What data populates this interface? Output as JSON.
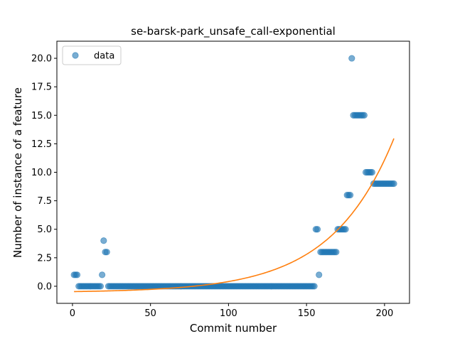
{
  "chart_data": {
    "type": "scatter",
    "title": "se-barsk-park_unsafe_call-exponential",
    "xlabel": "Commit number",
    "ylabel": "Number of instance of a feature",
    "xlim": [
      -10,
      216
    ],
    "ylim": [
      -1.5,
      21.5
    ],
    "xticks": [
      0,
      50,
      100,
      150,
      200
    ],
    "yticks": [
      0.0,
      2.5,
      5.0,
      7.5,
      10.0,
      12.5,
      15.0,
      17.5,
      20.0
    ],
    "ytick_labels": [
      "0.0",
      "2.5",
      "5.0",
      "7.5",
      "10.0",
      "12.5",
      "15.0",
      "17.5",
      "20.0"
    ],
    "legend": {
      "position": "upper-left",
      "entries": [
        "data"
      ]
    },
    "colors": {
      "data": "#1f77b4",
      "fit": "#ff7f0e"
    },
    "series": [
      {
        "name": "data",
        "kind": "scatter",
        "runs": [
          {
            "x_start": 1,
            "x_end": 3,
            "y": 1
          },
          {
            "x_start": 4,
            "x_end": 18,
            "y": 0
          },
          {
            "x_start": 19,
            "x_end": 19,
            "y": 1
          },
          {
            "x_start": 20,
            "x_end": 20,
            "y": 4
          },
          {
            "x_start": 21,
            "x_end": 22,
            "y": 3
          },
          {
            "x_start": 23,
            "x_end": 155,
            "y": 0
          },
          {
            "x_start": 156,
            "x_end": 157,
            "y": 5
          },
          {
            "x_start": 158,
            "x_end": 158,
            "y": 1
          },
          {
            "x_start": 159,
            "x_end": 169,
            "y": 3
          },
          {
            "x_start": 170,
            "x_end": 175,
            "y": 5
          },
          {
            "x_start": 176,
            "x_end": 178,
            "y": 8
          },
          {
            "x_start": 179,
            "x_end": 179,
            "y": 20
          },
          {
            "x_start": 180,
            "x_end": 187,
            "y": 15
          },
          {
            "x_start": 188,
            "x_end": 192,
            "y": 10
          },
          {
            "x_start": 193,
            "x_end": 206,
            "y": 9
          }
        ]
      },
      {
        "name": "",
        "kind": "line",
        "model": "exponential",
        "a": 0.08,
        "b": 0.0249,
        "c": -0.55,
        "x_range": [
          1,
          206
        ]
      }
    ]
  }
}
